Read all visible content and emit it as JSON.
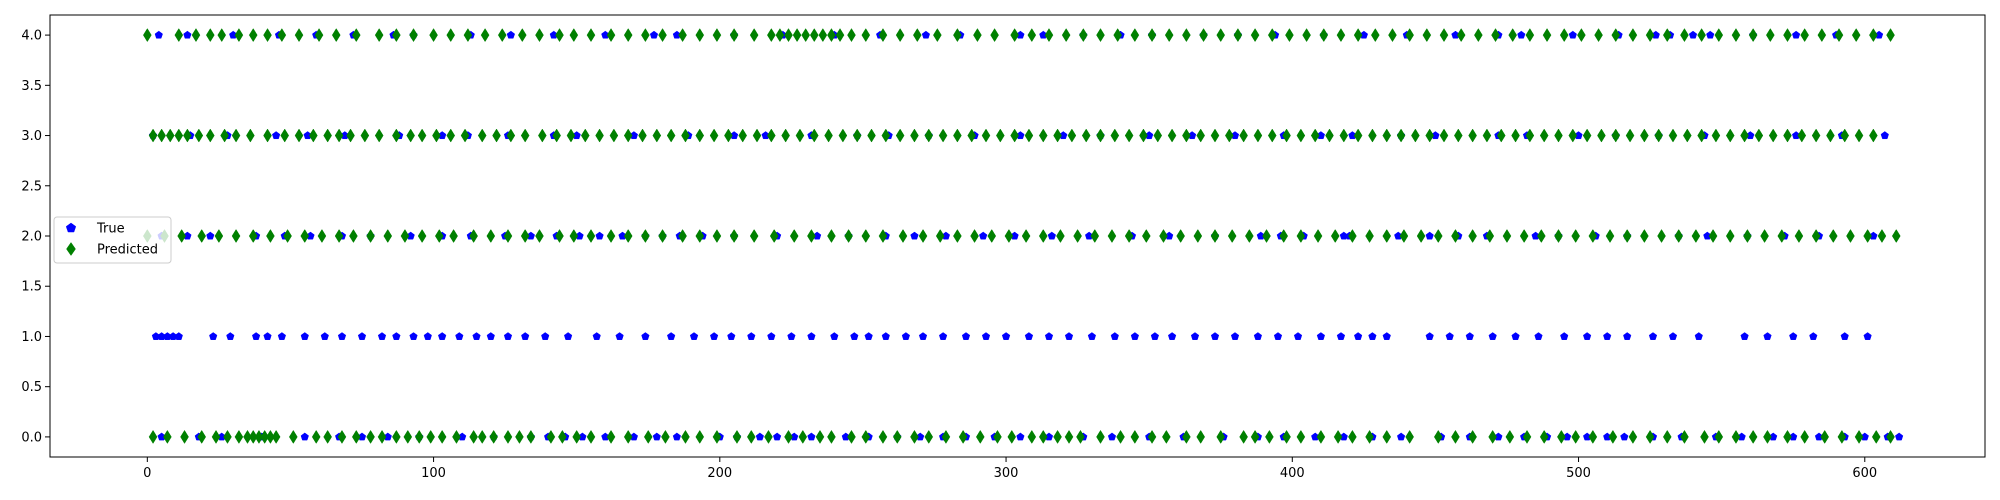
{
  "chart_data": {
    "type": "scatter",
    "xlim": [
      -34,
      642
    ],
    "ylim": [
      -0.2,
      4.2
    ],
    "xticks": [
      0,
      100,
      200,
      300,
      400,
      500,
      600
    ],
    "yticks": [
      0.0,
      0.5,
      1.0,
      1.5,
      2.0,
      2.5,
      3.0,
      3.5,
      4.0
    ],
    "ytick_labels": [
      "0.0",
      "0.5",
      "1.0",
      "1.5",
      "2.0",
      "2.5",
      "3.0",
      "3.5",
      "4.0"
    ],
    "grid": false,
    "legend_position": "center-left",
    "series": [
      {
        "name": "True",
        "marker": "pentagon",
        "color": "#0000ff",
        "points_by_y": {
          "0": [
            5,
            18,
            26,
            40,
            55,
            67,
            75,
            84,
            95,
            110,
            121,
            134,
            140,
            146,
            152,
            160,
            170,
            178,
            185,
            200,
            206,
            214,
            220,
            226,
            232,
            244,
            252,
            262,
            270,
            278,
            286,
            296,
            305,
            315,
            327,
            337,
            350,
            362,
            376,
            388,
            397,
            408,
            418,
            428,
            438,
            452,
            462,
            472,
            481,
            489,
            496,
            503,
            510,
            516,
            526,
            536,
            548,
            557,
            568,
            575,
            584,
            593,
            600,
            608,
            612
          ],
          "1": [
            3,
            5,
            7,
            9,
            11,
            23,
            29,
            38,
            42,
            47,
            55,
            62,
            68,
            75,
            82,
            87,
            93,
            98,
            103,
            109,
            115,
            120,
            126,
            132,
            139,
            147,
            157,
            165,
            174,
            183,
            191,
            198,
            204,
            211,
            218,
            225,
            232,
            240,
            247,
            252,
            258,
            265,
            271,
            278,
            286,
            293,
            300,
            308,
            315,
            322,
            330,
            338,
            345,
            352,
            358,
            366,
            373,
            380,
            388,
            395,
            402,
            410,
            417,
            423,
            428,
            433,
            448,
            455,
            462,
            470,
            478,
            486,
            495,
            503,
            510,
            517,
            526,
            533,
            542,
            558,
            566,
            575,
            582,
            593,
            601
          ],
          "2": [
            5,
            14,
            22,
            38,
            48,
            57,
            68,
            78,
            92,
            103,
            113,
            125,
            134,
            143,
            151,
            158,
            166,
            174,
            180,
            186,
            194,
            205,
            220,
            234,
            245,
            258,
            268,
            279,
            292,
            303,
            316,
            329,
            344,
            357,
            373,
            389,
            396,
            404,
            418,
            420,
            437,
            448,
            458,
            468,
            485,
            493,
            506,
            517,
            535,
            545,
            559,
            572,
            584,
            603
          ],
          "3": [
            2,
            15,
            28,
            45,
            56,
            69,
            88,
            103,
            112,
            126,
            142,
            150,
            170,
            189,
            205,
            216,
            232,
            248,
            259,
            273,
            289,
            305,
            320,
            333,
            350,
            365,
            380,
            397,
            410,
            421,
            438,
            450,
            472,
            482,
            500,
            513,
            528,
            544,
            560,
            576,
            592,
            607
          ],
          "4": [
            4,
            14,
            30,
            46,
            59,
            72,
            86,
            93,
            113,
            127,
            142,
            160,
            177,
            185,
            205,
            222,
            240,
            256,
            272,
            284,
            305,
            313,
            327,
            340,
            351,
            369,
            381,
            394,
            411,
            425,
            440,
            457,
            472,
            480,
            498,
            514,
            527,
            532,
            540,
            546,
            561,
            576,
            590,
            605
          ]
        }
      },
      {
        "name": "Predicted",
        "marker": "thin_diamond",
        "color": "#008000",
        "points_by_y": {
          "0": [
            2,
            7,
            13,
            19,
            24,
            28,
            32,
            35,
            37,
            39,
            41,
            43,
            45,
            51,
            59,
            63,
            68,
            73,
            78,
            82,
            87,
            91,
            95,
            99,
            103,
            108,
            114,
            117,
            121,
            126,
            130,
            134,
            141,
            145,
            150,
            155,
            162,
            168,
            175,
            181,
            188,
            193,
            199,
            206,
            211,
            217,
            224,
            229,
            235,
            239,
            246,
            251,
            257,
            262,
            268,
            273,
            279,
            285,
            291,
            297,
            302,
            309,
            313,
            318,
            322,
            326,
            333,
            340,
            345,
            351,
            356,
            363,
            368,
            375,
            383,
            387,
            392,
            398,
            403,
            410,
            416,
            421,
            427,
            433,
            441,
            451,
            457,
            463,
            470,
            476,
            482,
            488,
            494,
            499,
            505,
            512,
            519,
            525,
            531,
            537,
            544,
            549,
            555,
            561,
            566,
            573,
            579,
            586,
            592,
            598,
            604,
            609
          ],
          "2": [
            0,
            6,
            12,
            19,
            25,
            31,
            37,
            43,
            49,
            55,
            61,
            67,
            72,
            78,
            84,
            90,
            96,
            102,
            107,
            114,
            120,
            126,
            132,
            137,
            144,
            149,
            155,
            162,
            168,
            174,
            180,
            187,
            193,
            199,
            205,
            212,
            219,
            226,
            232,
            239,
            245,
            251,
            257,
            264,
            271,
            277,
            283,
            289,
            295,
            301,
            307,
            313,
            319,
            325,
            331,
            337,
            343,
            349,
            355,
            361,
            367,
            373,
            379,
            385,
            391,
            397,
            403,
            409,
            415,
            421,
            427,
            433,
            439,
            445,
            451,
            457,
            463,
            469,
            475,
            481,
            487,
            493,
            499,
            505,
            511,
            517,
            523,
            529,
            535,
            541,
            547,
            553,
            559,
            565,
            571,
            577,
            583,
            589,
            595,
            601,
            606,
            611
          ],
          "3": [
            2,
            5,
            8,
            11,
            14,
            18,
            22,
            27,
            31,
            36,
            42,
            48,
            53,
            58,
            63,
            67,
            71,
            76,
            81,
            87,
            92,
            96,
            101,
            106,
            111,
            117,
            122,
            127,
            132,
            138,
            143,
            148,
            153,
            158,
            163,
            168,
            173,
            178,
            183,
            188,
            193,
            198,
            203,
            208,
            213,
            218,
            223,
            228,
            233,
            238,
            243,
            248,
            253,
            258,
            263,
            268,
            273,
            278,
            283,
            288,
            293,
            298,
            303,
            308,
            313,
            318,
            323,
            328,
            333,
            338,
            343,
            348,
            353,
            358,
            363,
            368,
            373,
            378,
            383,
            388,
            393,
            398,
            403,
            408,
            413,
            418,
            423,
            428,
            433,
            438,
            443,
            448,
            453,
            458,
            463,
            468,
            473,
            478,
            483,
            488,
            493,
            498,
            503,
            508,
            513,
            518,
            523,
            528,
            533,
            538,
            543,
            548,
            553,
            558,
            563,
            568,
            573,
            578,
            583,
            588,
            593,
            598,
            603
          ],
          "4": [
            0,
            11,
            17,
            22,
            26,
            32,
            37,
            42,
            47,
            53,
            60,
            66,
            73,
            81,
            87,
            93,
            100,
            106,
            112,
            118,
            124,
            131,
            137,
            144,
            149,
            155,
            162,
            168,
            174,
            180,
            187,
            193,
            199,
            205,
            212,
            218,
            221,
            224,
            227,
            230,
            233,
            236,
            239,
            242,
            246,
            251,
            257,
            263,
            269,
            276,
            283,
            290,
            296,
            303,
            309,
            315,
            321,
            327,
            333,
            339,
            345,
            351,
            357,
            363,
            369,
            375,
            381,
            387,
            393,
            399,
            405,
            411,
            417,
            423,
            429,
            435,
            441,
            447,
            453,
            459,
            465,
            471,
            477,
            483,
            489,
            495,
            501,
            507,
            513,
            519,
            525,
            531,
            537,
            543,
            549,
            555,
            561,
            567,
            573,
            579,
            585,
            591,
            597,
            603,
            609
          ]
        }
      }
    ]
  }
}
